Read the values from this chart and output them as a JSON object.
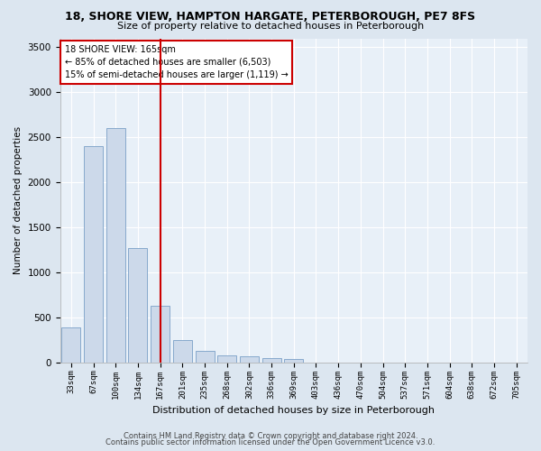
{
  "title1": "18, SHORE VIEW, HAMPTON HARGATE, PETERBOROUGH, PE7 8FS",
  "title2": "Size of property relative to detached houses in Peterborough",
  "xlabel": "Distribution of detached houses by size in Peterborough",
  "ylabel": "Number of detached properties",
  "categories": [
    "33sqm",
    "67sqm",
    "100sqm",
    "134sqm",
    "167sqm",
    "201sqm",
    "235sqm",
    "268sqm",
    "302sqm",
    "336sqm",
    "369sqm",
    "403sqm",
    "436sqm",
    "470sqm",
    "504sqm",
    "537sqm",
    "571sqm",
    "604sqm",
    "638sqm",
    "672sqm",
    "705sqm"
  ],
  "values": [
    390,
    2400,
    2600,
    1270,
    630,
    250,
    130,
    80,
    65,
    50,
    35,
    0,
    0,
    0,
    0,
    0,
    0,
    0,
    0,
    0,
    0
  ],
  "bar_color": "#ccd9ea",
  "bar_edge_color": "#7a9fc7",
  "vline_x_index": 4,
  "vline_color": "#cc0000",
  "ylim": [
    0,
    3600
  ],
  "yticks": [
    0,
    500,
    1000,
    1500,
    2000,
    2500,
    3000,
    3500
  ],
  "annotation_line1": "18 SHORE VIEW: 165sqm",
  "annotation_line2": "← 85% of detached houses are smaller (6,503)",
  "annotation_line3": "15% of semi-detached houses are larger (1,119) →",
  "annotation_box_color": "#ffffff",
  "annotation_box_edge": "#cc0000",
  "footer1": "Contains HM Land Registry data © Crown copyright and database right 2024.",
  "footer2": "Contains public sector information licensed under the Open Government Licence v3.0.",
  "bg_color": "#dce6f0",
  "plot_bg_color": "#e8f0f8",
  "grid_color": "#ffffff",
  "spine_color": "#aaaaaa"
}
